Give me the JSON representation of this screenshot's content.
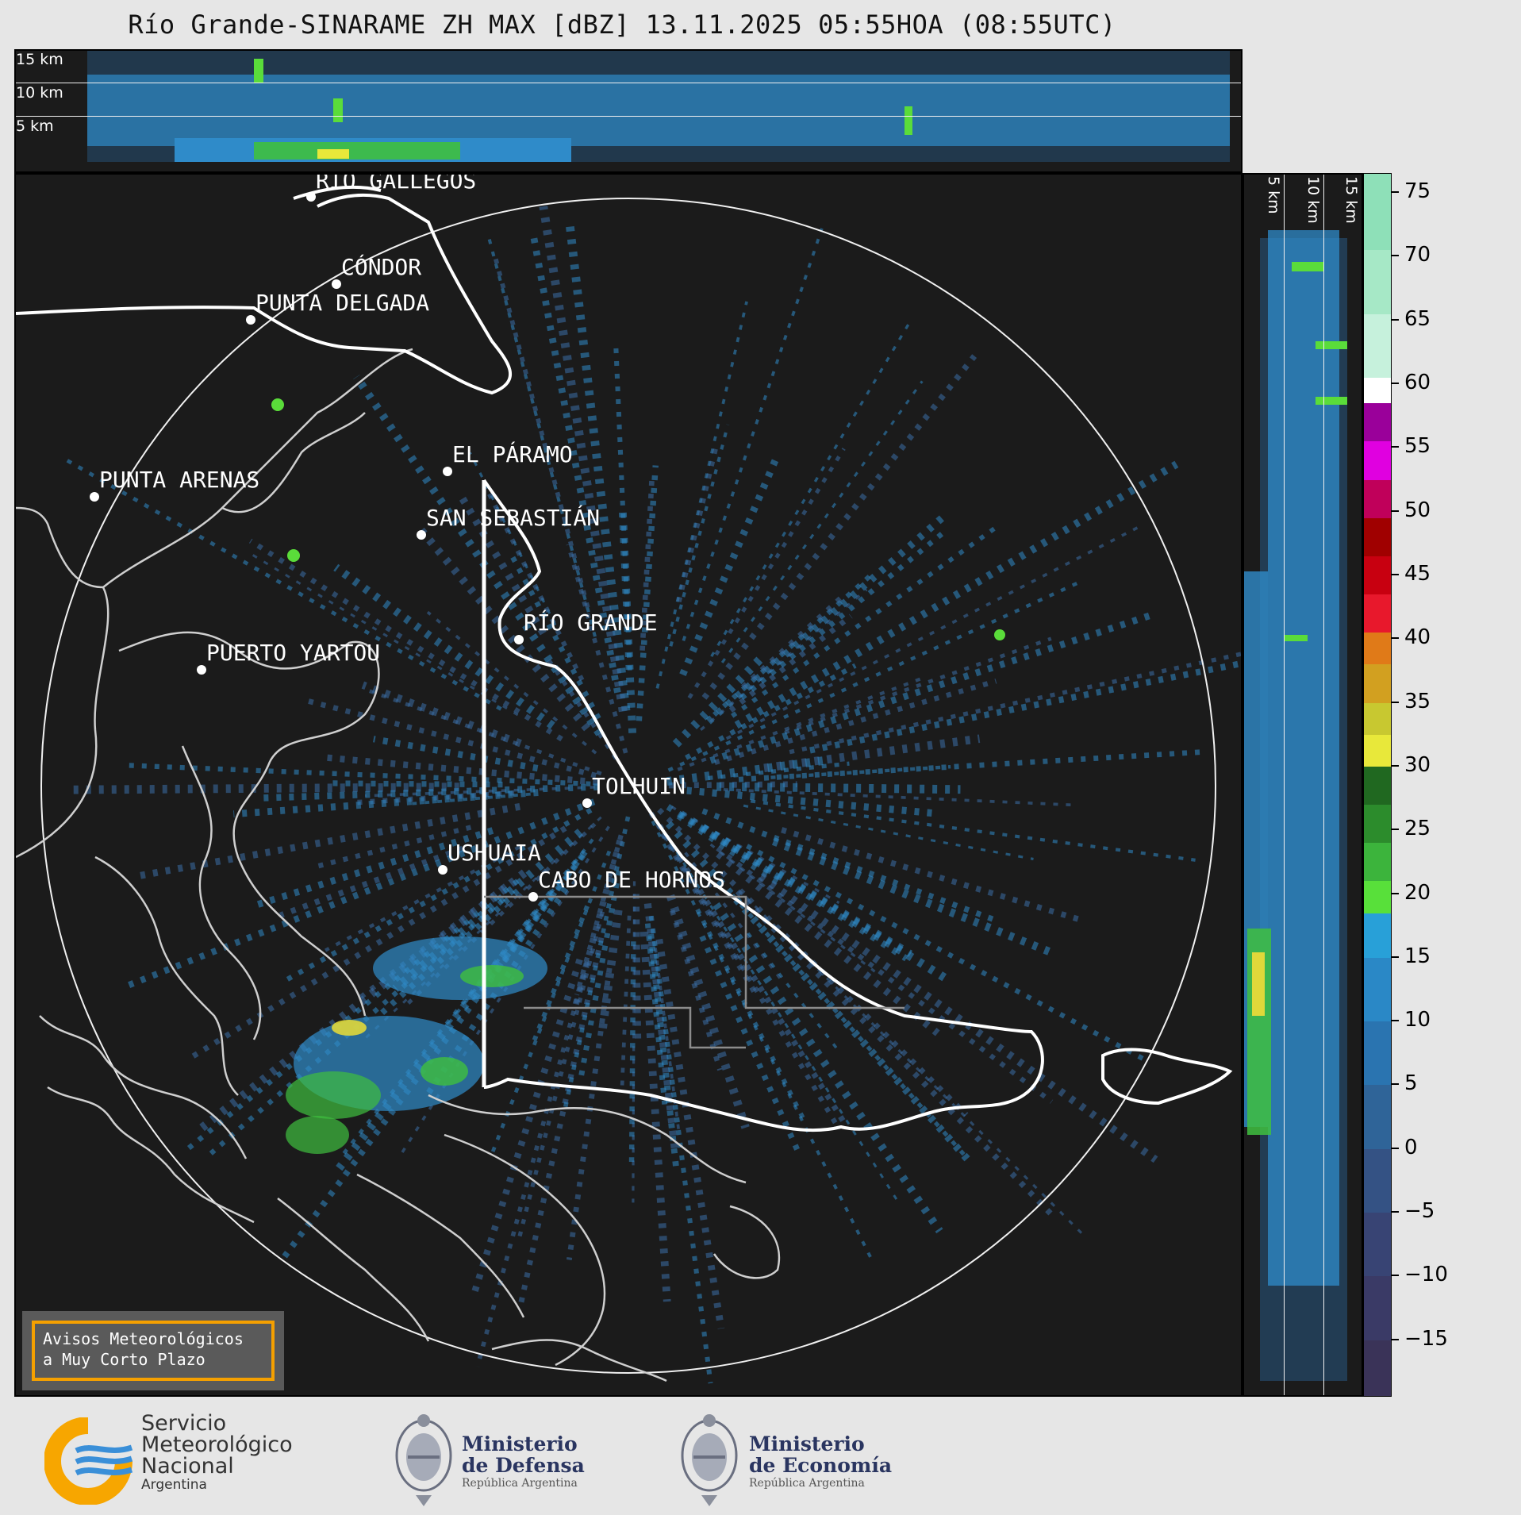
{
  "title": "Río Grande-SINARAME ZH MAX [dBZ] 13.11.2025 05:55HOA (08:55UTC)",
  "top_panel": {
    "altitudes": [
      "15 km",
      "10 km",
      "5 km"
    ]
  },
  "side_panel": {
    "altitudes": [
      "5 km",
      "10 km",
      "15 km"
    ]
  },
  "cities": [
    {
      "name": "RÍO GALLEGOS"
    },
    {
      "name": "CÓNDOR"
    },
    {
      "name": "PUNTA DELGADA"
    },
    {
      "name": "EL PÁRAMO"
    },
    {
      "name": "PUNTA ARENAS"
    },
    {
      "name": "SAN SEBASTIÁN"
    },
    {
      "name": "RÍO GRANDE"
    },
    {
      "name": "PUERTO YARTOU"
    },
    {
      "name": "TOLHUIN"
    },
    {
      "name": "USHUAIA"
    },
    {
      "name": "CABO DE HORNOS"
    }
  ],
  "warning": {
    "line1": "Avisos Meteorológicos",
    "line2": "a Muy Corto Plazo"
  },
  "colorbar": {
    "unit": "dBZ",
    "ticks": [
      "75",
      "70",
      "65",
      "60",
      "55",
      "50",
      "45",
      "40",
      "35",
      "30",
      "25",
      "20",
      "15",
      "10",
      "5",
      "0",
      "−5",
      "−10",
      "−15"
    ]
  },
  "logos": {
    "smn": {
      "line1": "Servicio",
      "line2": "Meteorológico",
      "line3": "Nacional",
      "line4": "Argentina"
    },
    "defensa": {
      "line1": "Ministerio",
      "line2": "de Defensa",
      "line3": "República Argentina"
    },
    "economia": {
      "line1": "Ministerio",
      "line2": "de Economía",
      "line3": "República Argentina"
    }
  },
  "colors": {
    "coast": "#cfcfcf",
    "border": "#ffffff",
    "accent": "#f5a000",
    "echo": "#2f8bc9"
  }
}
